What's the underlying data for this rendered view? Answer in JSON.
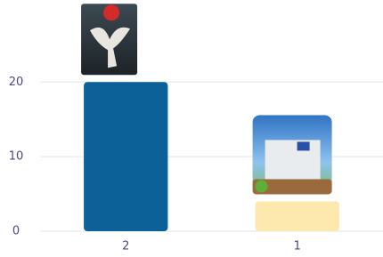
{
  "chart_data": {
    "type": "bar",
    "categories": [
      "2",
      "1"
    ],
    "values": [
      20,
      4
    ],
    "colors": [
      "#0b6198",
      "#fde9ae"
    ],
    "ylim": [
      0,
      31
    ],
    "yticks": [
      0,
      10,
      20
    ],
    "grid": true
  }
}
